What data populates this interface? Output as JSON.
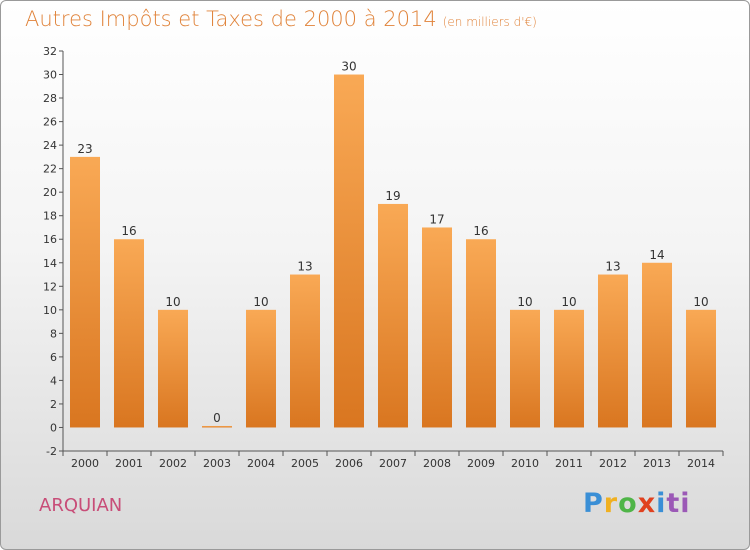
{
  "header": {
    "title": "Autres Impôts et Taxes de 2000 à 2014",
    "unit": "(en milliers d'€)"
  },
  "footer": {
    "commune": "ARQUIAN",
    "logo_letters": [
      "P",
      "r",
      "o",
      "x",
      "i",
      "ti"
    ]
  },
  "colors": {
    "bar_top": "#f9a955",
    "bar_bottom": "#d97620",
    "title": "#e0833a",
    "commune": "#c84d78"
  },
  "chart_data": {
    "type": "bar",
    "categories": [
      "2000",
      "2001",
      "2002",
      "2003",
      "2004",
      "2005",
      "2006",
      "2007",
      "2008",
      "2009",
      "2010",
      "2011",
      "2012",
      "2013",
      "2014"
    ],
    "values": [
      23,
      16,
      10,
      0,
      10,
      13,
      30,
      19,
      17,
      16,
      10,
      10,
      13,
      14,
      10
    ],
    "title": "Autres Impôts et Taxes de 2000 à 2014",
    "ylim": [
      -2,
      32
    ],
    "yticks": [
      -2,
      0,
      2,
      4,
      6,
      8,
      10,
      12,
      14,
      16,
      18,
      20,
      22,
      24,
      26,
      28,
      30,
      32
    ],
    "grid": false,
    "legend": "none"
  }
}
